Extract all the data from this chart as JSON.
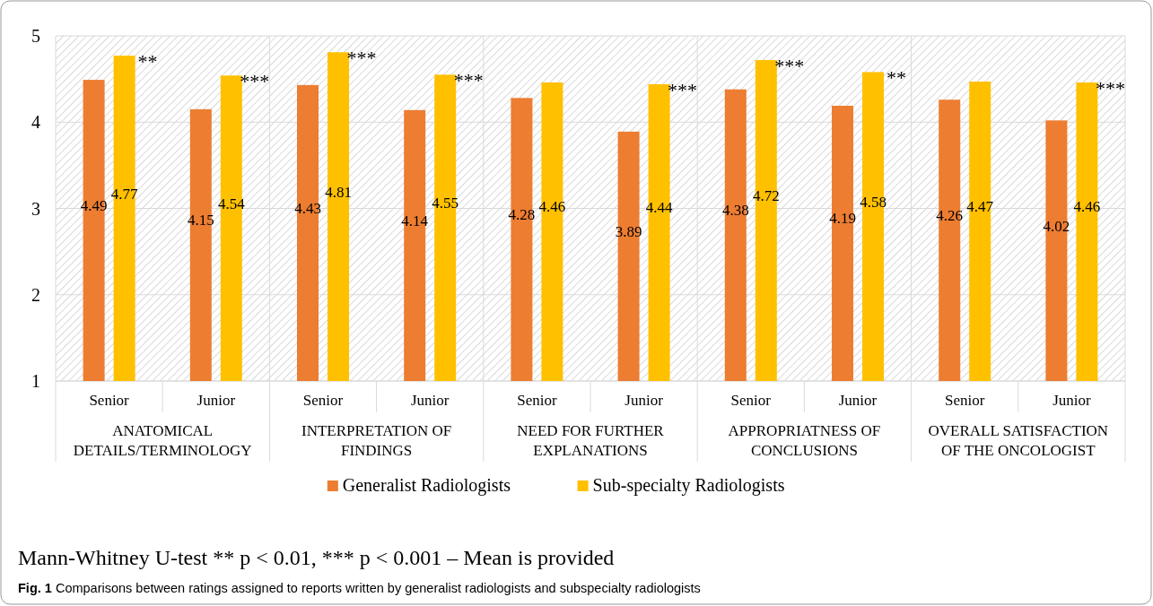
{
  "chart_data": {
    "type": "bar",
    "categories": [
      "Senior",
      "Junior",
      "Senior",
      "Junior",
      "Senior",
      "Junior",
      "Senior",
      "Junior",
      "Senior",
      "Junior"
    ],
    "series": [
      {
        "name": "Generalist Radiologists",
        "color": "#ed7d31",
        "values": [
          4.49,
          4.15,
          4.43,
          4.14,
          4.28,
          3.89,
          4.38,
          4.19,
          4.26,
          4.02
        ]
      },
      {
        "name": "Sub-specialty Radiologists",
        "color": "#ffc000",
        "values": [
          4.77,
          4.54,
          4.81,
          4.55,
          4.46,
          4.44,
          4.72,
          4.58,
          4.47,
          4.46
        ]
      }
    ],
    "ylim": [
      1,
      5
    ],
    "yticks": [
      1,
      2,
      3,
      4,
      5
    ],
    "grid": "y",
    "legend": "bottom",
    "data_labels": true,
    "annotations": [
      "**",
      "***",
      "***",
      "***",
      "***",
      "***",
      "**",
      "***",
      "ANATOMICAL DETAILS/TERMINOLOGY",
      "INTERPRETATION OF FINDINGS",
      "NEED FOR FURTHER EXPLANATIONS",
      "APPROPRIATNESS OF CONCLUSIONS",
      "OVERALL SATISFACTION OF THE ONCOLOGIST",
      "Mann-Whitney U-test ** p < 0.01, *** p < 0.001 – Mean is provided",
      "Fig. 1 Comparisons between ratings assigned to reports written by generalist radiologists and subspecialty radiologists"
    ]
  }
}
